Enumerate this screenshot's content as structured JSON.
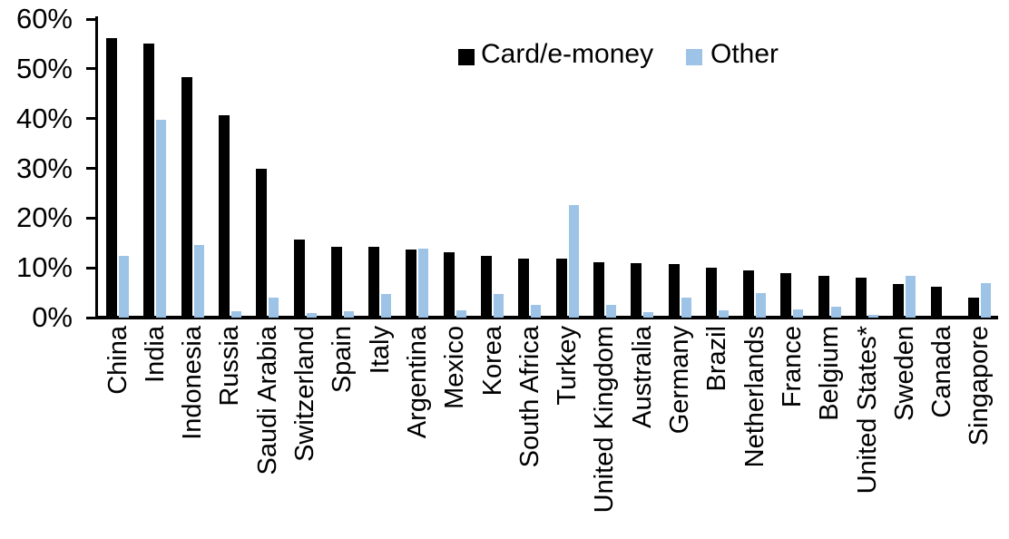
{
  "chart_data": {
    "type": "bar",
    "title": "",
    "xlabel": "",
    "ylabel": "",
    "ylim": [
      0,
      60
    ],
    "ytick_step": 10,
    "ytick_labels": [
      "0%",
      "10%",
      "20%",
      "30%",
      "40%",
      "50%",
      "60%"
    ],
    "grid": false,
    "legend_position": "top-center",
    "categories": [
      "China",
      "India",
      "Indonesia",
      "Russia",
      "Saudi Arabia",
      "Switzerland",
      "Spain",
      "Italy",
      "Argentina",
      "Mexico",
      "Korea",
      "South Africa",
      "Turkey",
      "United Kingdom",
      "Australia",
      "Germany",
      "Brazil",
      "Netherlands",
      "France",
      "Belgium",
      "United States*",
      "Sweden",
      "Canada",
      "Singapore"
    ],
    "series": [
      {
        "name": "Card/e-money",
        "color": "#000000",
        "values": [
          56.2,
          55.0,
          48.3,
          40.6,
          29.9,
          15.7,
          14.2,
          14.2,
          13.6,
          13.1,
          12.4,
          11.9,
          11.8,
          11.2,
          11.0,
          10.7,
          10.1,
          9.4,
          8.9,
          8.3,
          8.0,
          6.7,
          6.2,
          4.1
        ],
        "unit": "%"
      },
      {
        "name": "Other",
        "color": "#9DC3E6",
        "values": [
          12.4,
          39.7,
          14.6,
          1.2,
          4.0,
          0.9,
          1.2,
          4.8,
          13.9,
          1.5,
          4.8,
          2.5,
          22.7,
          2.5,
          1.1,
          4.0,
          1.4,
          5.0,
          1.7,
          2.2,
          0.5,
          8.3,
          0,
          7.0
        ],
        "unit": "%"
      }
    ]
  }
}
